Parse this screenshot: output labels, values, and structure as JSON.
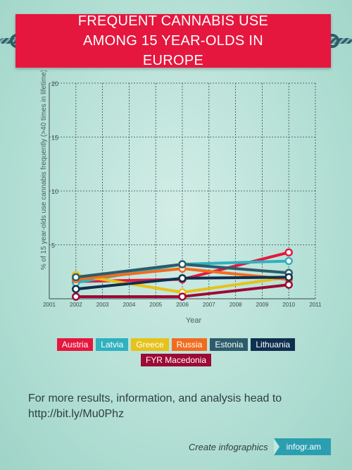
{
  "title": "FREQUENT CANNABIS USE AMONG 15 YEAR-OLDS IN EUROPE",
  "source_text": "For more results, information, and analysis head to http://bit.ly/Mu0Phz",
  "footer": {
    "create_text": "Create infographics",
    "brand": "infogr.am"
  },
  "chart_data": {
    "type": "line",
    "xlabel": "Year",
    "ylabel": "% of 15 year-olds use cannabis frequently (>40 times in lifetime)",
    "xlim": [
      2001,
      2011
    ],
    "ylim": [
      0,
      20
    ],
    "x_ticks": [
      2001,
      2002,
      2003,
      2004,
      2005,
      2006,
      2007,
      2008,
      2009,
      2010,
      2011
    ],
    "y_ticks": [
      5,
      10,
      15,
      20
    ],
    "grid": true,
    "legend_position": "bottom",
    "series": [
      {
        "name": "Austria",
        "color": "#e5173f",
        "x": [
          2002,
          2006,
          2010
        ],
        "y": [
          1.6,
          1.8,
          4.3
        ]
      },
      {
        "name": "Latvia",
        "color": "#2fb1bf",
        "x": [
          2002,
          2006,
          2010
        ],
        "y": [
          1.5,
          3.2,
          3.5
        ]
      },
      {
        "name": "Greece",
        "color": "#e6c21a",
        "x": [
          2002,
          2006,
          2010
        ],
        "y": [
          2.2,
          0.6,
          2.0
        ]
      },
      {
        "name": "Russia",
        "color": "#f26b1f",
        "x": [
          2002,
          2006,
          2010
        ],
        "y": [
          1.8,
          2.8,
          1.8
        ]
      },
      {
        "name": "Estonia",
        "color": "#2c5c6a",
        "x": [
          2002,
          2006,
          2010
        ],
        "y": [
          2.0,
          3.2,
          2.4
        ]
      },
      {
        "name": "Lithuania",
        "color": "#0f2f4f",
        "x": [
          2002,
          2006,
          2010
        ],
        "y": [
          0.9,
          1.9,
          2.0
        ]
      },
      {
        "name": "FYR Macedonia",
        "color": "#9c0a35",
        "x": [
          2002,
          2006,
          2010
        ],
        "y": [
          0.2,
          0.2,
          1.3
        ]
      }
    ]
  }
}
